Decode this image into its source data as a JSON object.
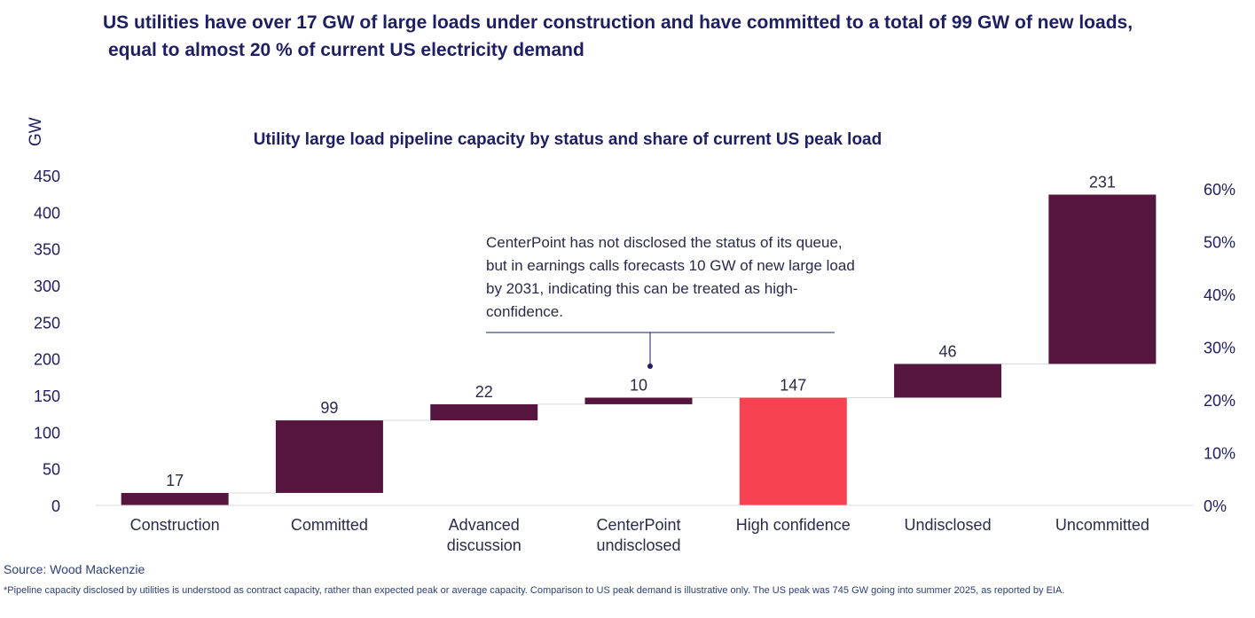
{
  "headline": {
    "line1": "US utilities have over 17 GW of large loads under construction and have committed to a total of 99 GW of new loads,",
    "line2": "equal to almost 20 % of   current US electricity demand"
  },
  "annotation": {
    "text": "CenterPoint has not disclosed the status of its queue, but in earnings calls forecasts 10 GW of new large load by 2031, indicating this can be treated as high-confidence.",
    "target_category": "CenterPoint undisclosed"
  },
  "source": "Source: Wood Mackenzie",
  "footnote": "*Pipeline capacity disclosed by utilities is understood as contract capacity, rather than expected peak or average capacity. Comparison to US peak demand is illustrative only. The US peak was 745 GW going into summer 2025, as reported by EIA.",
  "colors": {
    "bar": "#55153f",
    "highlight": "#f74351",
    "connector": "#d9d9d9",
    "text": "#1e1e64"
  },
  "chart_data": {
    "type": "bar",
    "subtype": "waterfall",
    "title": "Utility large load pipeline capacity by status and share of current US peak load",
    "ylabel": "GW",
    "ylim": [
      0,
      450
    ],
    "yticks": [
      "0",
      "50",
      "100",
      "150",
      "200",
      "250",
      "300",
      "350",
      "400",
      "450"
    ],
    "y2lim": [
      0,
      0.6
    ],
    "y2ticks": [
      "0%",
      "10%",
      "20%",
      "30%",
      "40%",
      "50%",
      "60%"
    ],
    "grid": false,
    "categories": [
      [
        "Construction"
      ],
      [
        "Committed"
      ],
      [
        "Advanced",
        "discussion"
      ],
      [
        "CenterPoint",
        "undisclosed"
      ],
      [
        "High confidence"
      ],
      [
        "Undisclosed"
      ],
      [
        "Uncommitted"
      ]
    ],
    "bars": [
      {
        "label": "17",
        "start": 0,
        "end": 17,
        "kind": "increment"
      },
      {
        "label": "99",
        "start": 17,
        "end": 116,
        "kind": "increment"
      },
      {
        "label": "22",
        "start": 116,
        "end": 138,
        "kind": "increment"
      },
      {
        "label": "10",
        "start": 138,
        "end": 147,
        "kind": "increment"
      },
      {
        "label": "147",
        "start": 0,
        "end": 147,
        "kind": "total"
      },
      {
        "label": "46",
        "start": 147,
        "end": 193,
        "kind": "increment"
      },
      {
        "label": "231",
        "start": 193,
        "end": 424,
        "kind": "increment"
      }
    ]
  }
}
